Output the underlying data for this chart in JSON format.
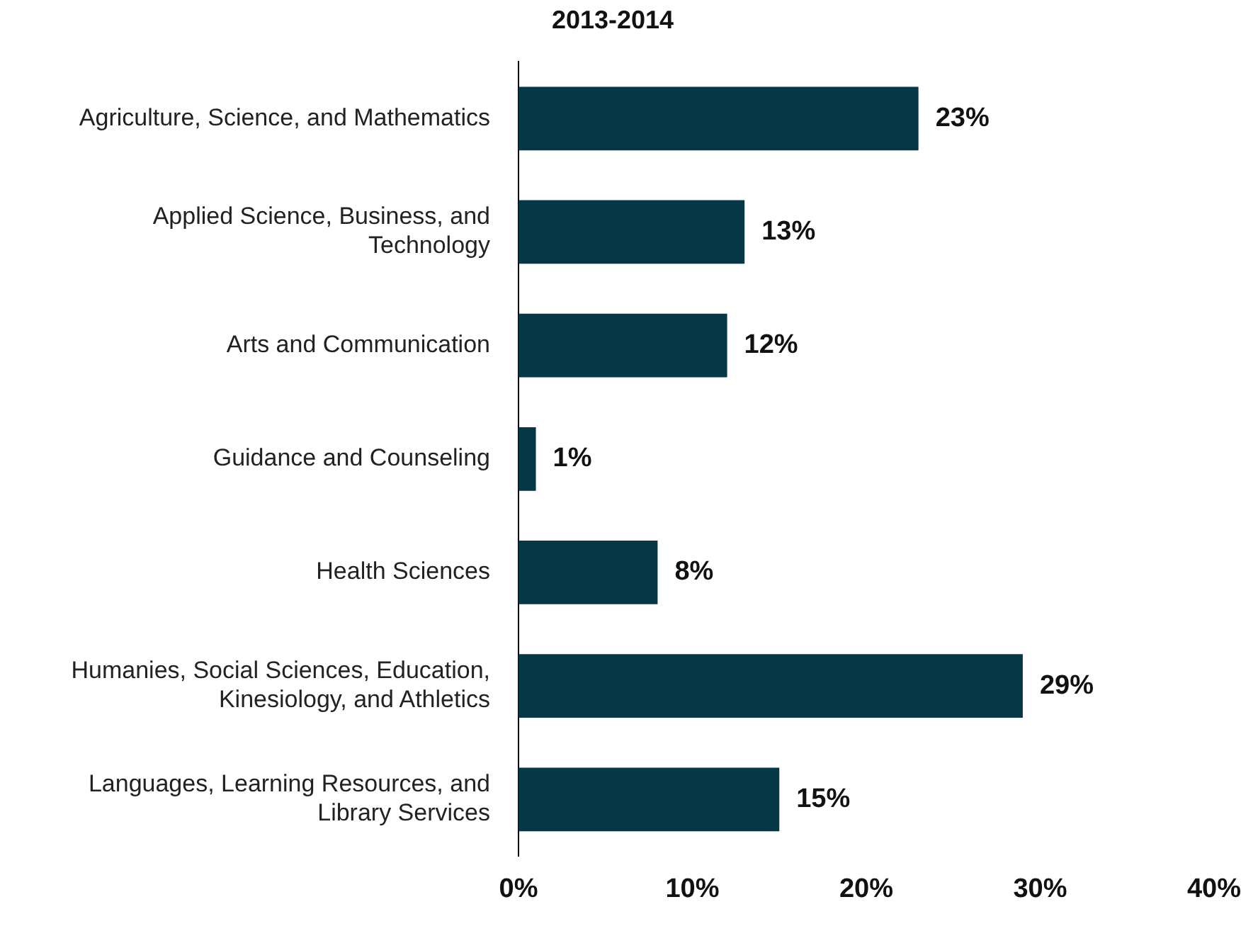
{
  "chart_data": {
    "type": "bar",
    "orientation": "horizontal",
    "title": "2013-2014",
    "categories": [
      "Agriculture, Science, and Mathematics",
      "Applied Science, Business, and Technology",
      "Arts and Communication",
      "Guidance and Counseling",
      "Health Sciences",
      "Humanies, Social Sciences, Education, Kinesiology, and Athletics",
      "Languages, Learning Resources, and Library Services"
    ],
    "values": [
      23,
      13,
      12,
      1,
      8,
      29,
      15
    ],
    "value_labels": [
      "23%",
      "13%",
      "12%",
      "1%",
      "8%",
      "29%",
      "15%"
    ],
    "color": "#063746",
    "xlim": [
      0,
      40
    ],
    "xticks": [
      {
        "value": 0,
        "label": "0%"
      },
      {
        "value": 10,
        "label": "10%"
      },
      {
        "value": 20,
        "label": "20%"
      },
      {
        "value": 30,
        "label": "30%"
      },
      {
        "value": 40,
        "label": "40%"
      }
    ],
    "grid": false,
    "legend": false
  }
}
